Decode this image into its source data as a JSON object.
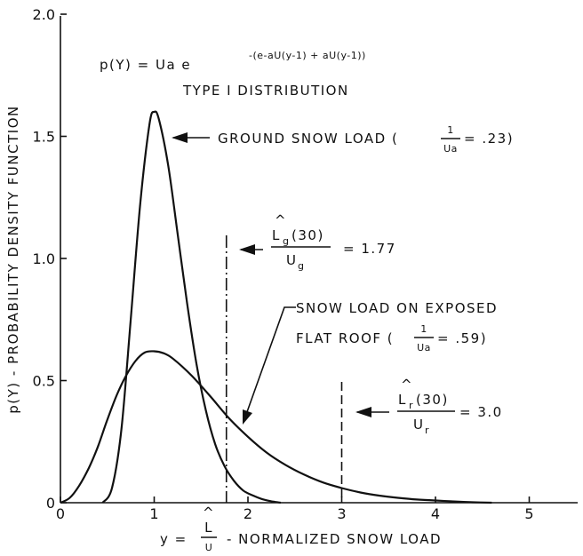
{
  "chart_data": {
    "type": "line",
    "title": "",
    "xlabel": "y = L̂/U - NORMALIZED SNOW LOAD",
    "ylabel": "p(Y) - PROBABILITY DENSITY FUNCTION",
    "xlim": [
      0,
      5.5
    ],
    "ylim": [
      0,
      2.0
    ],
    "x_ticks": [
      "0",
      "1",
      "2",
      "3",
      "4",
      "5"
    ],
    "y_ticks": [
      "0",
      "0.5",
      "1.0",
      "1.5",
      "2.0"
    ],
    "grid": false,
    "formula": {
      "lhs": "p(Y) = Ua  e",
      "exponent": "-(e-aU(y-1) + aU(y-1))"
    },
    "distribution_label": "TYPE I DISTRIBUTION",
    "series": [
      {
        "name": "GROUND SNOW LOAD",
        "inv_ua": 0.23,
        "peak": [
          1.0,
          1.6
        ],
        "x": [
          0.45,
          0.55,
          0.65,
          0.75,
          0.85,
          0.95,
          1.0,
          1.05,
          1.15,
          1.25,
          1.35,
          1.45,
          1.55,
          1.65,
          1.75,
          1.85,
          1.95,
          2.05,
          2.15,
          2.25,
          2.35
        ],
        "y": [
          0.0,
          0.06,
          0.3,
          0.75,
          1.22,
          1.55,
          1.6,
          1.57,
          1.38,
          1.1,
          0.82,
          0.57,
          0.38,
          0.24,
          0.15,
          0.09,
          0.05,
          0.03,
          0.015,
          0.006,
          0.0
        ]
      },
      {
        "name": "SNOW LOAD ON EXPOSED FLAT ROOF",
        "inv_ua": 0.59,
        "peak": [
          1.0,
          0.62
        ],
        "x": [
          0.0,
          0.1,
          0.2,
          0.3,
          0.4,
          0.5,
          0.6,
          0.7,
          0.8,
          0.9,
          1.0,
          1.1,
          1.2,
          1.4,
          1.6,
          1.8,
          2.0,
          2.2,
          2.4,
          2.6,
          2.8,
          3.0,
          3.2,
          3.4,
          3.6,
          3.8,
          4.0,
          4.2,
          4.4,
          4.6
        ],
        "y": [
          0.0,
          0.02,
          0.07,
          0.14,
          0.23,
          0.34,
          0.44,
          0.52,
          0.58,
          0.615,
          0.62,
          0.612,
          0.59,
          0.52,
          0.435,
          0.345,
          0.27,
          0.205,
          0.155,
          0.115,
          0.083,
          0.06,
          0.042,
          0.029,
          0.02,
          0.013,
          0.009,
          0.005,
          0.002,
          0.0
        ]
      }
    ],
    "markers": [
      {
        "name": "Lg(30)/Ug",
        "x": 1.77,
        "value_label": "= 1.77",
        "style": "dash-dot"
      },
      {
        "name": "Lr(30)/Ur",
        "x": 3.0,
        "value_label": "= 3.0",
        "style": "dashed"
      }
    ]
  },
  "labels": {
    "ground_label": "GROUND SNOW LOAD (",
    "ground_frac_num": "1",
    "ground_frac_den": "Ua",
    "ground_value": "= .23)",
    "lg_num": "L",
    "lg_num_sub": "g",
    "lg_num_rest": "(30)",
    "lg_den": "U",
    "lg_den_sub": "g",
    "lg_value": "= 1.77",
    "roof_line1": "SNOW LOAD ON EXPOSED",
    "roof_line2": "FLAT ROOF (",
    "roof_frac_num": "1",
    "roof_frac_den": "Ua",
    "roof_value": "= .59)",
    "lr_num": "L",
    "lr_num_sub": "r",
    "lr_num_rest": "(30)",
    "lr_den": "U",
    "lr_den_sub": "r",
    "lr_value": "= 3.0",
    "hat": "^",
    "x_label_lhs": "y =",
    "x_label_num": "L",
    "x_label_den": "U",
    "x_label_rhs": "- NORMALIZED SNOW LOAD"
  }
}
